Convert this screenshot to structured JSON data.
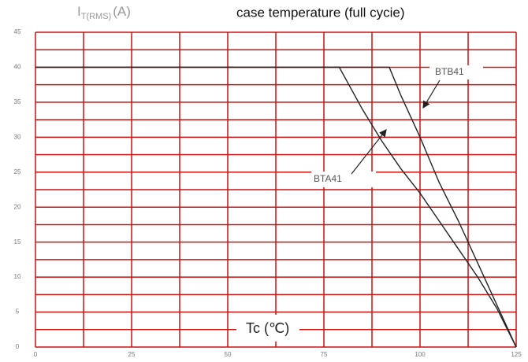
{
  "chart_data": {
    "type": "line",
    "title": "case temperature (full cycie)",
    "ylabel": [
      "I",
      "T(RMS)",
      "(A)"
    ],
    "xlabel": "Tc (℃)",
    "series": [
      {
        "name": "BTA41",
        "color": "#222222",
        "x": [
          0,
          79,
          85,
          90,
          95,
          100,
          105,
          110,
          115,
          120,
          125
        ],
        "values": [
          40,
          40,
          34,
          29.5,
          25.5,
          22,
          18,
          14,
          10,
          5.5,
          0
        ]
      },
      {
        "name": "BTB41",
        "color": "#222222",
        "x": [
          0,
          92,
          95,
          100,
          105,
          110,
          115,
          120,
          125
        ],
        "values": [
          40,
          40,
          36,
          30,
          23.5,
          18,
          12,
          6,
          0
        ]
      }
    ],
    "xlim": [
      0,
      125
    ],
    "xticks": [
      0,
      25,
      50,
      75,
      100,
      125
    ],
    "ylim": [
      0,
      45
    ],
    "yticks": [
      0,
      5,
      10,
      15,
      20,
      25,
      30,
      35,
      40,
      45
    ],
    "grid": true,
    "grid_color": "#cc1111"
  }
}
